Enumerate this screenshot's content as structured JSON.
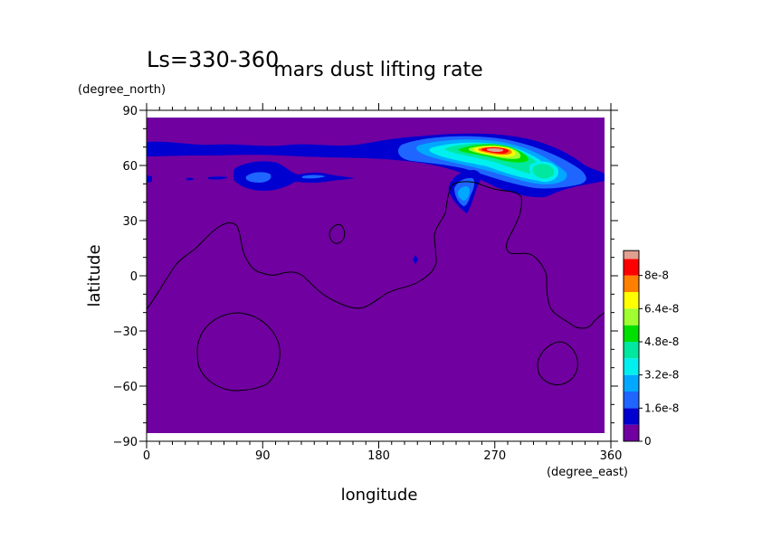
{
  "chart_data": {
    "type": "heatmap",
    "title": "mars dust lifting rate",
    "subtitle": "Ls=330-360",
    "xlabel": "longitude",
    "ylabel": "latitude",
    "x_units": "(degree_east)",
    "y_units": "(degree_north)",
    "xlim": [
      0,
      360
    ],
    "ylim": [
      -90,
      90
    ],
    "x_data_range": [
      0,
      355
    ],
    "y_data_range": [
      -85,
      85
    ],
    "x_ticks": [
      0,
      90,
      180,
      270,
      360
    ],
    "y_ticks": [
      90,
      60,
      30,
      0,
      -30,
      -60,
      -90
    ],
    "grid": false,
    "colorbar": {
      "placement": "right",
      "levels": [
        0,
        8e-09,
        1.6e-08,
        2.4e-08,
        3.2e-08,
        4e-08,
        4.8e-08,
        5.6e-08,
        6.4e-08,
        7.2e-08,
        8e-08,
        8.8e-08
      ],
      "colors": [
        "#7000a0",
        "#0000d0",
        "#1e66ff",
        "#00a8ff",
        "#00f0f0",
        "#00e8a0",
        "#00e000",
        "#a0ff30",
        "#ffff00",
        "#ff8000",
        "#ff0000",
        "#e0a090"
      ],
      "tick_labels": [
        "0",
        "1.6e-8",
        "3.2e-8",
        "4.8e-8",
        "6.4e-8",
        "8e-8"
      ]
    },
    "background_value": 0,
    "features": [
      {
        "name": "northern polar band",
        "lon": [
          0,
          355
        ],
        "lat": [
          55,
          72
        ],
        "peak": 1.6e-08
      },
      {
        "name": "main lifting maximum",
        "lon": [
          260,
          285
        ],
        "lat": [
          64,
          72
        ],
        "peak": 8e-08
      },
      {
        "name": "secondary maximum",
        "lon": [
          290,
          315
        ],
        "lat": [
          50,
          62
        ],
        "peak": 4e-08
      },
      {
        "name": "isolated spot",
        "lon": [
          235,
          260
        ],
        "lat": [
          32,
          52
        ],
        "peak": 3.2e-08
      },
      {
        "name": "band at 55N",
        "lon": [
          0,
          160
        ],
        "lat": [
          50,
          60
        ],
        "peak": 2.4e-08
      },
      {
        "name": "small feature",
        "lon": [
          208,
          212
        ],
        "lat": [
          6,
          10
        ],
        "peak": 1.6e-08
      }
    ],
    "contour_overlay": "topography (black line)"
  }
}
